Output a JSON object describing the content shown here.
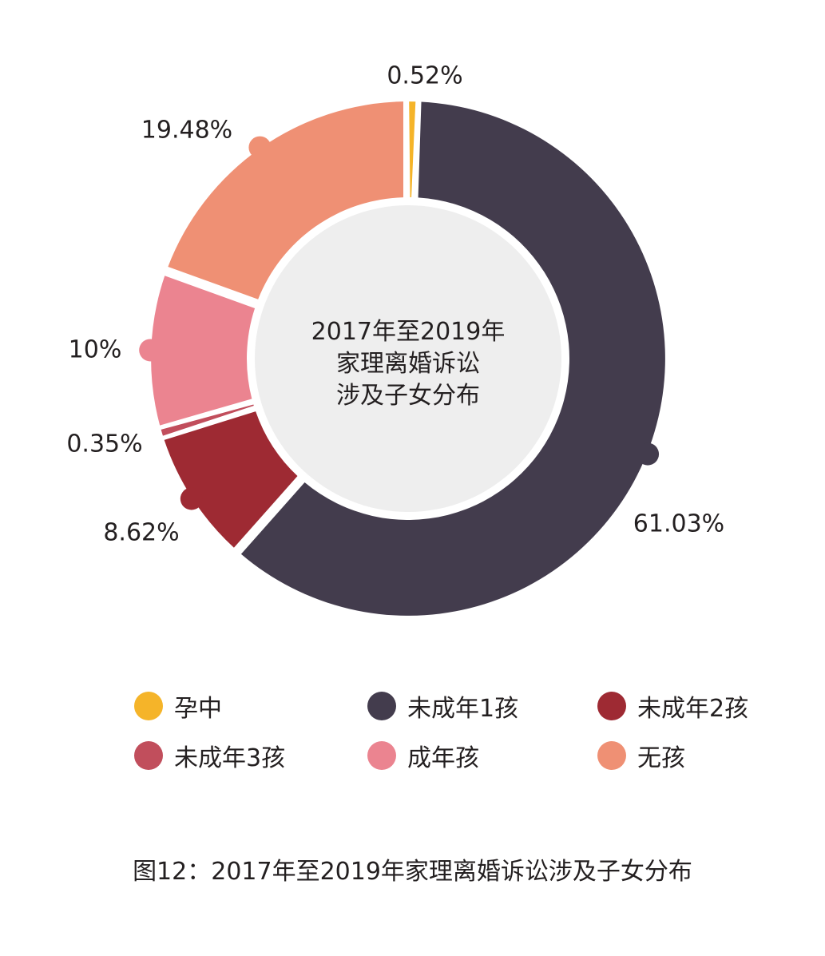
{
  "chart_data": {
    "type": "pie",
    "variant": "donut",
    "title": "2017年至2019年家理离婚诉讼涉及子女分布",
    "center_title_lines": [
      "2017年至2019年",
      "家理离婚诉讼",
      "涉及子女分布"
    ],
    "slices": [
      {
        "label": "孕中",
        "value": 0.52,
        "value_label": "0.52%",
        "color": "#f5b429"
      },
      {
        "label": "未成年1孩",
        "value": 61.03,
        "value_label": "61.03%",
        "color": "#433c4d"
      },
      {
        "label": "未成年2孩",
        "value": 8.62,
        "value_label": "8.62%",
        "color": "#9e2a33"
      },
      {
        "label": "未成年3孩",
        "value": 0.35,
        "value_label": "0.35%",
        "color": "#c14e5c"
      },
      {
        "label": "成年孩",
        "value": 10,
        "value_label": "10%",
        "color": "#eb8490"
      },
      {
        "label": "无孩",
        "value": 19.48,
        "value_label": "19.48%",
        "color": "#ef9074"
      }
    ],
    "legend_placement": "bottom"
  },
  "caption": "图12：2017年至2019年家理离婚诉讼涉及子女分布",
  "colors": {
    "center_fill": "#eeeeee",
    "text": "#231f20"
  }
}
